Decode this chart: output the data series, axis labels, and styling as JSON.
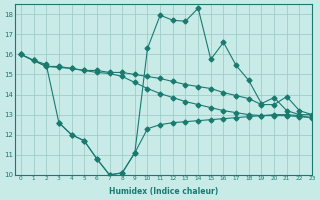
{
  "xlabel": "Humidex (Indice chaleur)",
  "bg_color": "#c8ebe8",
  "grid_color": "#a0ccc8",
  "line_color": "#1a7a70",
  "xlim": [
    -0.5,
    23
  ],
  "ylim": [
    10,
    18.5
  ],
  "yticks": [
    10,
    11,
    12,
    13,
    14,
    15,
    16,
    17,
    18
  ],
  "xticks": [
    0,
    1,
    2,
    3,
    4,
    5,
    6,
    7,
    8,
    9,
    10,
    11,
    12,
    13,
    14,
    15,
    16,
    17,
    18,
    19,
    20,
    21,
    22,
    23
  ],
  "line1_x": [
    0,
    1,
    2,
    3,
    4,
    5,
    6,
    7,
    8,
    9,
    10,
    11,
    12,
    13,
    14,
    15,
    16,
    17,
    18,
    19,
    20,
    21,
    22,
    23
  ],
  "line1_y": [
    16.0,
    15.7,
    15.4,
    15.4,
    15.3,
    15.2,
    15.2,
    15.1,
    15.1,
    15.0,
    14.9,
    14.8,
    14.65,
    14.5,
    14.4,
    14.3,
    14.1,
    13.95,
    13.8,
    13.5,
    13.5,
    13.9,
    13.2,
    13.0
  ],
  "line2_x": [
    0,
    1,
    2,
    3,
    4,
    5,
    6,
    7,
    8,
    9,
    10,
    11,
    12,
    13,
    14,
    15,
    16,
    17,
    18,
    19,
    20,
    21,
    22,
    23
  ],
  "line2_y": [
    16.0,
    15.7,
    15.4,
    15.35,
    15.3,
    15.2,
    15.1,
    15.05,
    14.9,
    14.6,
    14.3,
    14.05,
    13.85,
    13.65,
    13.5,
    13.35,
    13.2,
    13.1,
    13.0,
    12.95,
    12.95,
    12.95,
    12.9,
    12.85
  ],
  "line3_x": [
    3,
    4,
    5,
    6,
    7,
    8,
    9,
    10,
    11,
    12,
    13,
    14,
    15,
    16,
    17,
    18,
    19,
    20,
    21,
    22,
    23
  ],
  "line3_y": [
    12.6,
    12.0,
    11.7,
    10.8,
    10.0,
    10.1,
    11.1,
    12.3,
    12.5,
    12.6,
    12.65,
    12.7,
    12.75,
    12.8,
    12.85,
    12.9,
    12.95,
    13.0,
    13.0,
    12.95,
    12.85
  ],
  "line4_x": [
    0,
    1,
    2,
    3,
    4,
    5,
    6,
    7,
    8,
    9,
    10,
    11,
    12,
    13,
    14,
    15,
    16,
    17,
    18,
    19,
    20,
    21,
    22,
    23
  ],
  "line4_y": [
    16.0,
    15.7,
    15.5,
    12.6,
    12.0,
    11.7,
    10.8,
    10.0,
    10.1,
    11.1,
    16.3,
    17.95,
    17.7,
    17.65,
    18.3,
    15.75,
    16.6,
    15.45,
    14.7,
    13.55,
    13.85,
    13.2,
    13.0,
    13.0
  ],
  "markersize": 2.5
}
